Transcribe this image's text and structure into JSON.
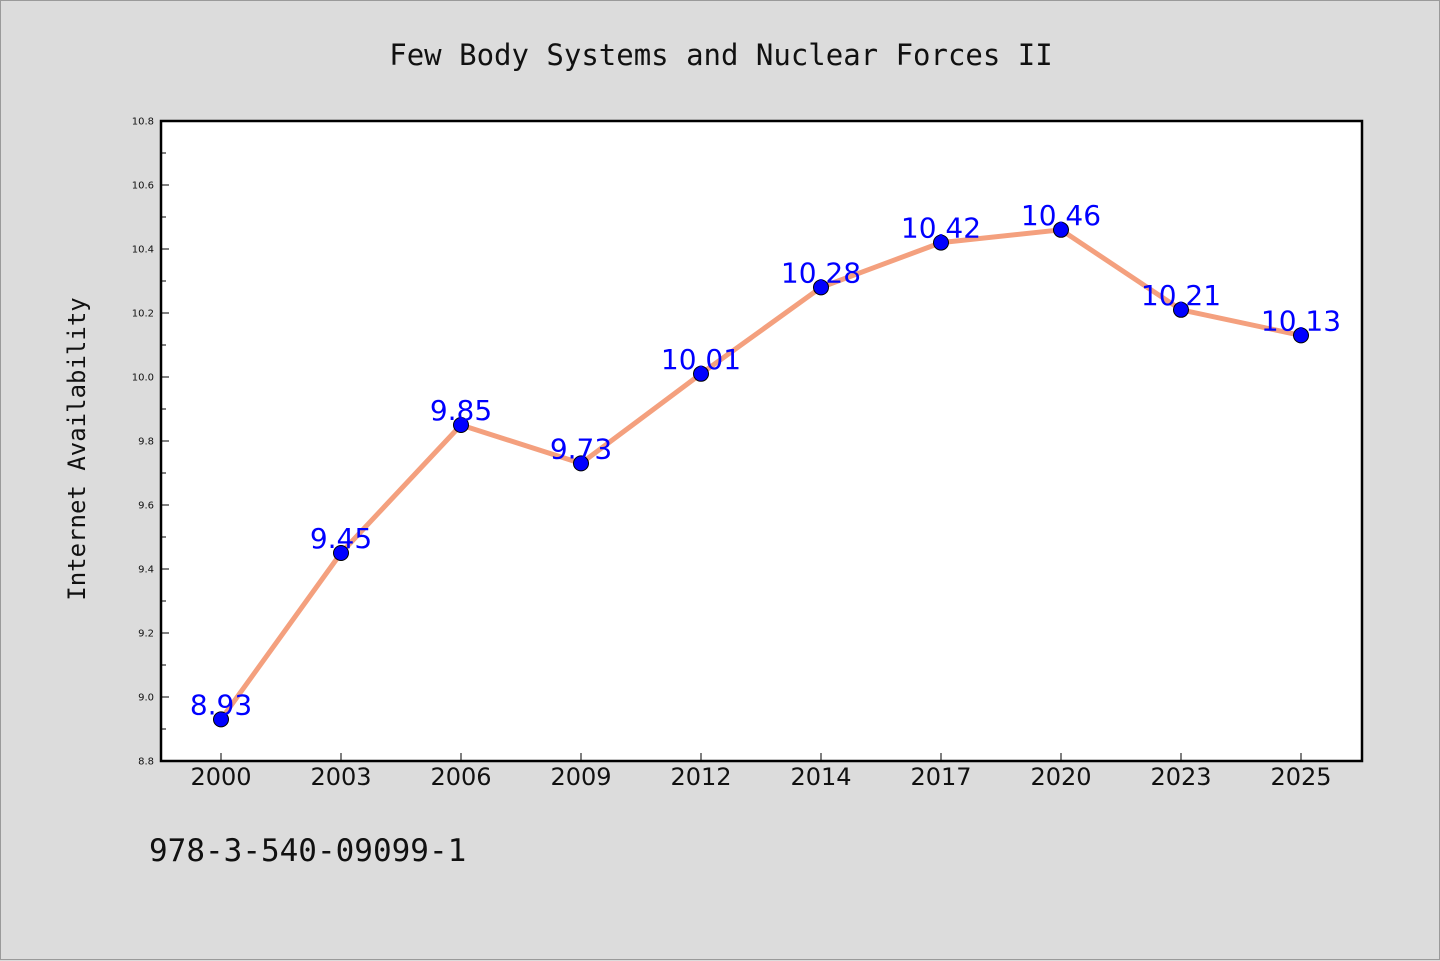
{
  "chart_data": {
    "type": "line",
    "title": "Few Body Systems and Nuclear Forces II",
    "xlabel": "",
    "ylabel": "Internet Availability",
    "categories": [
      "2000",
      "2003",
      "2006",
      "2009",
      "2012",
      "2014",
      "2017",
      "2020",
      "2023",
      "2025"
    ],
    "series": [
      {
        "values": [
          8.93,
          9.45,
          9.85,
          9.73,
          10.01,
          10.28,
          10.42,
          10.46,
          10.21,
          10.13
        ],
        "line_color": "#f4a07e",
        "marker_color": "#0000ff"
      }
    ],
    "data_labels": [
      "8.93",
      "9.45",
      "9.85",
      "9.73",
      "10.01",
      "10.28",
      "10.42",
      "10.46",
      "10.21",
      "10.13"
    ],
    "ylim": [
      8.8,
      10.8
    ],
    "yticks": [
      "8.8",
      "9.0",
      "9.2",
      "9.4",
      "9.6",
      "9.8",
      "10.0",
      "10.2",
      "10.4",
      "10.6",
      "10.8"
    ],
    "grid": false,
    "legend": "none",
    "label_color": "#0000ff"
  },
  "footer": {
    "code": "978-3-540-09099-1"
  }
}
